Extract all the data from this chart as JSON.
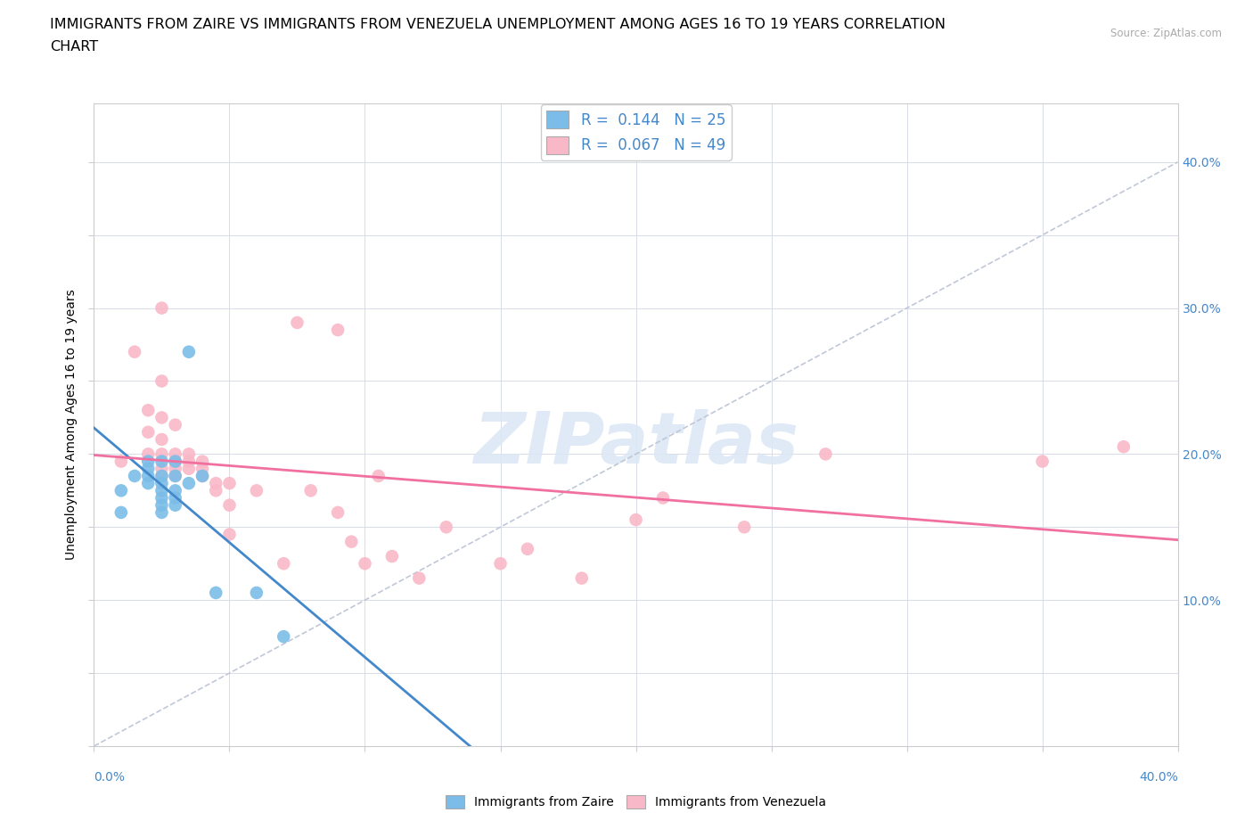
{
  "title_line1": "IMMIGRANTS FROM ZAIRE VS IMMIGRANTS FROM VENEZUELA UNEMPLOYMENT AMONG AGES 16 TO 19 YEARS CORRELATION",
  "title_line2": "CHART",
  "source": "Source: ZipAtlas.com",
  "ylabel": "Unemployment Among Ages 16 to 19 years",
  "xlim": [
    0.0,
    0.4
  ],
  "ylim": [
    0.0,
    0.44
  ],
  "right_yticks": [
    0.1,
    0.2,
    0.3,
    0.4
  ],
  "bottom_xtick_left": "0.0%",
  "bottom_xtick_right": "40.0%",
  "legend_r1": "0.144",
  "legend_n1": "25",
  "legend_r2": "0.067",
  "legend_n2": "49",
  "zaire_color": "#7bbde8",
  "venezuela_color": "#f9b8c8",
  "zaire_line_color": "#4488cc",
  "venezuela_line_color": "#f070a0",
  "ref_line_color": "#c0c8d8",
  "grid_color": "#d8dce8",
  "background_color": "#ffffff",
  "title_fontsize": 11.5,
  "axis_label_fontsize": 10,
  "tick_fontsize": 10,
  "legend_fontsize": 12,
  "zaire_scatter": [
    [
      0.01,
      0.175
    ],
    [
      0.01,
      0.16
    ],
    [
      0.015,
      0.185
    ],
    [
      0.02,
      0.195
    ],
    [
      0.02,
      0.19
    ],
    [
      0.02,
      0.185
    ],
    [
      0.02,
      0.18
    ],
    [
      0.025,
      0.195
    ],
    [
      0.025,
      0.185
    ],
    [
      0.025,
      0.18
    ],
    [
      0.025,
      0.175
    ],
    [
      0.025,
      0.17
    ],
    [
      0.025,
      0.165
    ],
    [
      0.025,
      0.16
    ],
    [
      0.03,
      0.195
    ],
    [
      0.03,
      0.185
    ],
    [
      0.03,
      0.175
    ],
    [
      0.03,
      0.17
    ],
    [
      0.03,
      0.165
    ],
    [
      0.035,
      0.27
    ],
    [
      0.035,
      0.18
    ],
    [
      0.04,
      0.185
    ],
    [
      0.045,
      0.105
    ],
    [
      0.06,
      0.105
    ],
    [
      0.07,
      0.075
    ]
  ],
  "venezuela_scatter": [
    [
      0.01,
      0.195
    ],
    [
      0.015,
      0.27
    ],
    [
      0.02,
      0.23
    ],
    [
      0.02,
      0.215
    ],
    [
      0.02,
      0.2
    ],
    [
      0.025,
      0.3
    ],
    [
      0.025,
      0.25
    ],
    [
      0.025,
      0.225
    ],
    [
      0.025,
      0.21
    ],
    [
      0.025,
      0.2
    ],
    [
      0.025,
      0.19
    ],
    [
      0.025,
      0.185
    ],
    [
      0.03,
      0.22
    ],
    [
      0.03,
      0.2
    ],
    [
      0.03,
      0.195
    ],
    [
      0.03,
      0.19
    ],
    [
      0.03,
      0.185
    ],
    [
      0.035,
      0.2
    ],
    [
      0.035,
      0.195
    ],
    [
      0.035,
      0.19
    ],
    [
      0.04,
      0.195
    ],
    [
      0.04,
      0.19
    ],
    [
      0.04,
      0.185
    ],
    [
      0.045,
      0.18
    ],
    [
      0.045,
      0.175
    ],
    [
      0.05,
      0.18
    ],
    [
      0.05,
      0.165
    ],
    [
      0.05,
      0.145
    ],
    [
      0.06,
      0.175
    ],
    [
      0.07,
      0.125
    ],
    [
      0.075,
      0.29
    ],
    [
      0.08,
      0.175
    ],
    [
      0.09,
      0.285
    ],
    [
      0.09,
      0.16
    ],
    [
      0.095,
      0.14
    ],
    [
      0.1,
      0.125
    ],
    [
      0.105,
      0.185
    ],
    [
      0.11,
      0.13
    ],
    [
      0.12,
      0.115
    ],
    [
      0.13,
      0.15
    ],
    [
      0.15,
      0.125
    ],
    [
      0.16,
      0.135
    ],
    [
      0.18,
      0.115
    ],
    [
      0.2,
      0.155
    ],
    [
      0.21,
      0.17
    ],
    [
      0.24,
      0.15
    ],
    [
      0.27,
      0.2
    ],
    [
      0.35,
      0.195
    ],
    [
      0.38,
      0.205
    ]
  ]
}
